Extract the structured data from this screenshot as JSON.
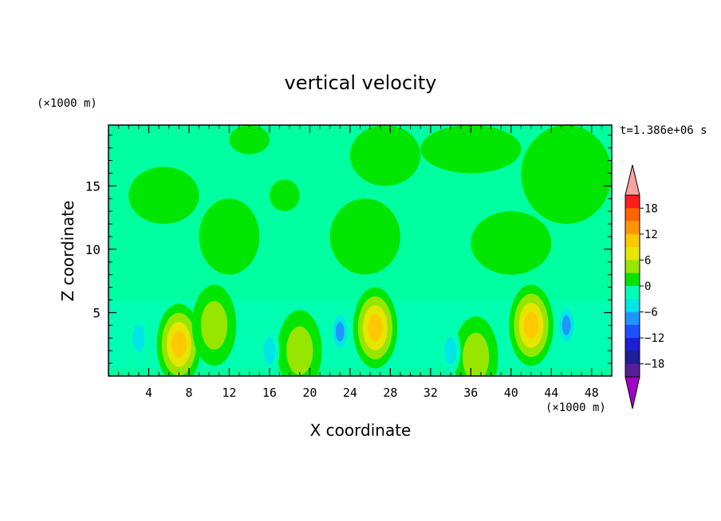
{
  "chart_data": {
    "type": "heatmap",
    "title": "vertical velocity",
    "xlabel": "X coordinate",
    "ylabel": "Z coordinate",
    "x_unit": "(×1000 m)",
    "y_unit": "(×1000 m)",
    "time_label": "t=1.386e+06 s",
    "xlim": [
      0,
      50
    ],
    "ylim": [
      0,
      19.8
    ],
    "x_ticks": [
      4,
      8,
      12,
      16,
      20,
      24,
      28,
      32,
      36,
      40,
      44,
      48
    ],
    "y_ticks": [
      5,
      10,
      15
    ],
    "grid": false,
    "colorbar": {
      "levels": [
        -21,
        -18,
        -15,
        -12,
        -9,
        -6,
        -3,
        0,
        3,
        6,
        9,
        12,
        15,
        18,
        21
      ],
      "labels": [
        18,
        12,
        6,
        0,
        -6,
        -12,
        -18
      ],
      "colors": [
        "#a000c8",
        "#5a1e96",
        "#1e1e96",
        "#1e1ed2",
        "#1e50ff",
        "#1e96ff",
        "#00e6e6",
        "#00ffb4",
        "#00e600",
        "#96e600",
        "#e6e600",
        "#ffc800",
        "#ff9600",
        "#ff6400",
        "#ff1e1e",
        "#ffa0a0"
      ],
      "over_color": "#ffa0a0",
      "under_color": "#a000c8"
    },
    "background_value_color": "#00ffa0",
    "features": [
      {
        "type": "updraft",
        "x": 7.0,
        "z": 2.5,
        "peak": 12
      },
      {
        "type": "updraft",
        "x": 10.5,
        "z": 4.0,
        "peak": 6
      },
      {
        "type": "updraft",
        "x": 19.0,
        "z": 2.0,
        "peak": 6
      },
      {
        "type": "updraft",
        "x": 26.5,
        "z": 3.8,
        "peak": 12
      },
      {
        "type": "updraft",
        "x": 42.0,
        "z": 4.0,
        "peak": 12
      },
      {
        "type": "updraft",
        "x": 36.5,
        "z": 1.5,
        "peak": 6
      },
      {
        "type": "downdraft",
        "x": 3.0,
        "z": 3.0,
        "peak": -6
      },
      {
        "type": "downdraft",
        "x": 23.0,
        "z": 3.5,
        "peak": -9
      },
      {
        "type": "downdraft",
        "x": 45.5,
        "z": 4.0,
        "peak": -9
      },
      {
        "type": "downdraft",
        "x": 16.0,
        "z": 2.0,
        "peak": -6
      },
      {
        "type": "downdraft",
        "x": 34.0,
        "z": 2.0,
        "peak": -6
      }
    ],
    "upper_positive_regions": [
      {
        "x": [
          12,
          16
        ],
        "z": [
          17.5,
          19.8
        ]
      },
      {
        "x": [
          2,
          9
        ],
        "z": [
          12,
          16.5
        ]
      },
      {
        "x": [
          9,
          15
        ],
        "z": [
          8,
          14
        ]
      },
      {
        "x": [
          16,
          19
        ],
        "z": [
          13,
          15.5
        ]
      },
      {
        "x": [
          22,
          29
        ],
        "z": [
          8,
          14
        ]
      },
      {
        "x": [
          24,
          31
        ],
        "z": [
          15,
          19.8
        ]
      },
      {
        "x": [
          31,
          41
        ],
        "z": [
          16,
          19.8
        ]
      },
      {
        "x": [
          36,
          44
        ],
        "z": [
          8,
          13
        ]
      },
      {
        "x": [
          41,
          50
        ],
        "z": [
          12,
          19.8
        ]
      }
    ]
  }
}
